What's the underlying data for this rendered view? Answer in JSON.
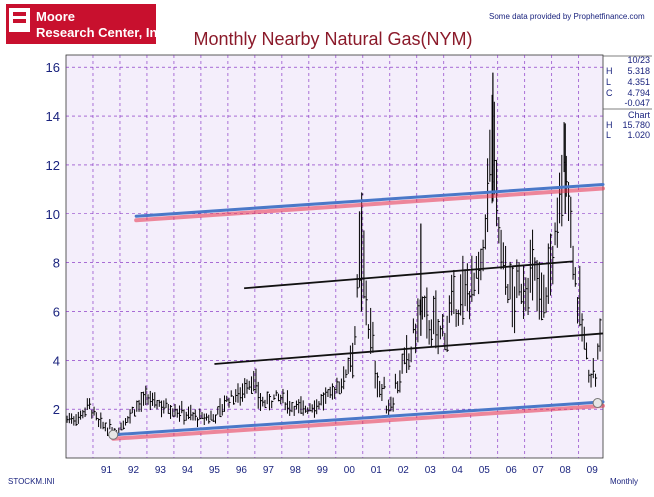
{
  "header": {
    "logo_line1": "Moore",
    "logo_line2": "Research Center, Inc.",
    "credit": "Some data provided by Prophetfinance.com",
    "title": "Monthly Nearby Natural Gas(NYM)"
  },
  "footer": {
    "file_name": "STOCKM.INI",
    "period": "Monthly"
  },
  "info_panel": {
    "date": "10/23",
    "rows": [
      {
        "key": "H",
        "value": "5.318"
      },
      {
        "key": "L",
        "value": "4.351"
      },
      {
        "key": "C",
        "value": "4.794"
      },
      {
        "key": "",
        "value": "-0.047"
      }
    ],
    "chart_label": "Chart",
    "chart_rows": [
      {
        "key": "H",
        "value": "15.780"
      },
      {
        "key": "L",
        "value": "1.020"
      }
    ]
  },
  "colors": {
    "background": "#f4eefb",
    "grid": "#7a1fbf",
    "bars": "#000000",
    "title": "#8b1a2a",
    "logo_bg": "#c8102e",
    "channel_blue": "#4a78c8",
    "channel_red": "#e8324a"
  },
  "chart_data": {
    "type": "bar",
    "subtype": "monthly-high-low-close",
    "title": "Monthly Nearby Natural Gas(NYM)",
    "xlabel": "",
    "ylabel": "",
    "x_tick_labels": [
      "91",
      "92",
      "93",
      "94",
      "95",
      "96",
      "97",
      "98",
      "99",
      "00",
      "01",
      "02",
      "03",
      "04",
      "05",
      "06",
      "07",
      "08",
      "09"
    ],
    "y_tick_labels": [
      "2",
      "4",
      "6",
      "8",
      "10",
      "12",
      "14",
      "16"
    ],
    "xlim": [
      1990.0,
      2009.9
    ],
    "ylim": [
      0,
      16.5
    ],
    "grid": true,
    "legend": "none",
    "anchors": [
      {
        "x": 1990.08,
        "y": 1.6
      },
      {
        "x": 1990.5,
        "y": 1.7
      },
      {
        "x": 1990.85,
        "y": 2.2
      },
      {
        "x": 1991.2,
        "y": 1.4
      },
      {
        "x": 1991.6,
        "y": 1.2
      },
      {
        "x": 1991.9,
        "y": 1.1
      },
      {
        "x": 1992.3,
        "y": 1.7
      },
      {
        "x": 1992.7,
        "y": 2.2
      },
      {
        "x": 1993.0,
        "y": 2.4
      },
      {
        "x": 1993.5,
        "y": 2.2
      },
      {
        "x": 1994.0,
        "y": 2.0
      },
      {
        "x": 1994.5,
        "y": 1.8
      },
      {
        "x": 1995.0,
        "y": 1.6
      },
      {
        "x": 1995.5,
        "y": 1.7
      },
      {
        "x": 1996.0,
        "y": 2.4
      },
      {
        "x": 1996.4,
        "y": 2.6
      },
      {
        "x": 1996.9,
        "y": 3.2
      },
      {
        "x": 1997.3,
        "y": 2.2
      },
      {
        "x": 1997.8,
        "y": 2.5
      },
      {
        "x": 1998.3,
        "y": 2.2
      },
      {
        "x": 1998.8,
        "y": 2.0
      },
      {
        "x": 1999.3,
        "y": 2.2
      },
      {
        "x": 1999.8,
        "y": 2.6
      },
      {
        "x": 2000.3,
        "y": 3.2
      },
      {
        "x": 2000.7,
        "y": 5.0
      },
      {
        "x": 2000.95,
        "y": 9.5
      },
      {
        "x": 2001.2,
        "y": 5.5
      },
      {
        "x": 2001.6,
        "y": 3.0
      },
      {
        "x": 2001.95,
        "y": 2.2
      },
      {
        "x": 2002.3,
        "y": 3.2
      },
      {
        "x": 2002.7,
        "y": 4.0
      },
      {
        "x": 2003.1,
        "y": 6.0
      },
      {
        "x": 2003.5,
        "y": 5.5
      },
      {
        "x": 2003.9,
        "y": 5.0
      },
      {
        "x": 2004.3,
        "y": 6.0
      },
      {
        "x": 2004.7,
        "y": 6.5
      },
      {
        "x": 2005.0,
        "y": 7.0
      },
      {
        "x": 2005.4,
        "y": 7.5
      },
      {
        "x": 2005.8,
        "y": 13.5
      },
      {
        "x": 2006.1,
        "y": 8.5
      },
      {
        "x": 2006.5,
        "y": 6.5
      },
      {
        "x": 2006.9,
        "y": 7.0
      },
      {
        "x": 2007.3,
        "y": 7.5
      },
      {
        "x": 2007.7,
        "y": 6.5
      },
      {
        "x": 2008.1,
        "y": 8.5
      },
      {
        "x": 2008.5,
        "y": 12.5
      },
      {
        "x": 2008.9,
        "y": 7.0
      },
      {
        "x": 2009.3,
        "y": 4.0
      },
      {
        "x": 2009.6,
        "y": 3.2
      },
      {
        "x": 2009.8,
        "y": 4.8
      }
    ],
    "spikes": [
      {
        "x": 2005.82,
        "high": 15.78,
        "low": 10.5
      },
      {
        "x": 2008.5,
        "high": 13.7,
        "low": 10.0
      },
      {
        "x": 2000.95,
        "high": 10.1,
        "low": 6.0
      },
      {
        "x": 2003.15,
        "high": 9.6,
        "low": 5.0
      }
    ],
    "trendlines": [
      {
        "name": "upper-channel",
        "style": "blue-red",
        "x": [
          1992.6,
          2009.9
        ],
        "y": [
          9.9,
          11.2
        ]
      },
      {
        "name": "lower-channel",
        "style": "blue-red",
        "x": [
          1991.75,
          2009.9
        ],
        "y": [
          0.95,
          2.3
        ]
      },
      {
        "name": "mid-upper",
        "style": "black",
        "x": [
          1996.6,
          2008.8
        ],
        "y": [
          6.95,
          8.05
        ]
      },
      {
        "name": "mid-lower",
        "style": "black",
        "x": [
          1995.5,
          2009.9
        ],
        "y": [
          3.85,
          5.1
        ]
      }
    ],
    "markers": [
      {
        "x": 1991.75,
        "y": 0.95
      },
      {
        "x": 2009.7,
        "y": 2.25
      }
    ]
  }
}
